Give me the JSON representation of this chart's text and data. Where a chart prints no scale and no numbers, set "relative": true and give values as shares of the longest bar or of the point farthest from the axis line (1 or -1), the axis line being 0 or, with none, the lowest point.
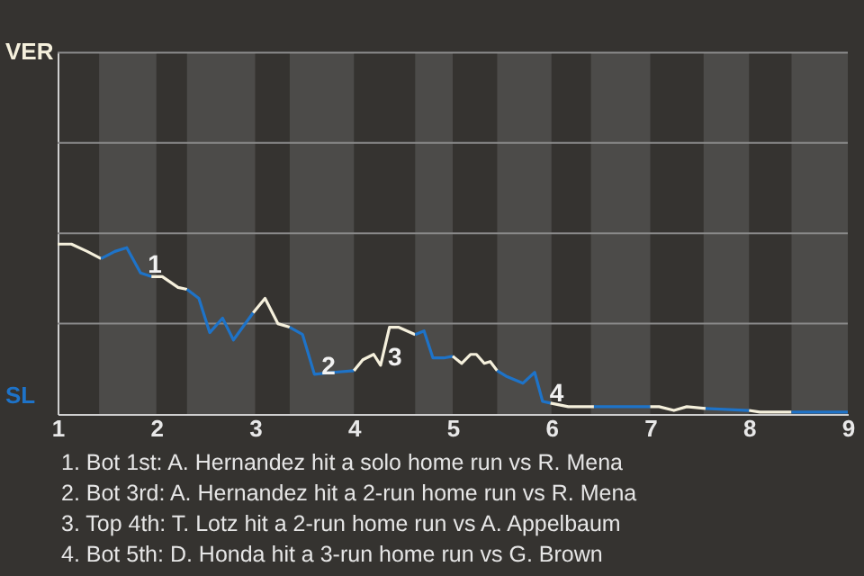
{
  "chart_data": {
    "type": "line",
    "relative": true,
    "xlim": [
      1,
      9
    ],
    "xticks": [
      1,
      2,
      3,
      4,
      5,
      6,
      7,
      8,
      9
    ],
    "ref_lines": [
      {
        "axis": "y",
        "value": 0.532,
        "color": "#8a8a8a"
      },
      {
        "axis": "y",
        "value": 1.064,
        "color": "#8a8a8a"
      },
      {
        "axis": "y",
        "value": 1.596,
        "color": "#8a8a8a"
      },
      {
        "axis": "y",
        "value": 2.128,
        "color": "#8a8a8a"
      }
    ],
    "marker": "none",
    "line_style": "solid",
    "series": [
      {
        "color": "#f5f0dc",
        "x": [
          1,
          1.14,
          1.3,
          1.44
        ],
        "values": [
          1,
          1,
          0.957,
          0.915
        ]
      },
      {
        "color": "#1e73c8",
        "x": [
          1.44,
          1.58,
          1.7,
          1.84,
          1.95
        ],
        "values": [
          0.915,
          0.957,
          0.979,
          0.83,
          0.809
        ]
      },
      {
        "color": "#f5f0dc",
        "x": [
          1.95,
          2.06,
          2.22,
          2.31
        ],
        "values": [
          0.809,
          0.809,
          0.745,
          0.734
        ]
      },
      {
        "color": "#1e73c8",
        "x": [
          2.31,
          2.43,
          2.54,
          2.67,
          2.78,
          2.98
        ],
        "values": [
          0.734,
          0.681,
          0.479,
          0.564,
          0.436,
          0.596
        ]
      },
      {
        "color": "#f5f0dc",
        "x": [
          2.98,
          3.1,
          3.23,
          3.35
        ],
        "values": [
          0.596,
          0.681,
          0.532,
          0.511
        ]
      },
      {
        "color": "#1e73c8",
        "x": [
          3.35,
          3.48,
          3.6,
          3.79,
          4
        ],
        "values": [
          0.511,
          0.468,
          0.234,
          0.245,
          0.255
        ]
      },
      {
        "color": "#f5f0dc",
        "x": [
          4,
          4.09,
          4.2,
          4.27,
          4.36,
          4.45,
          4.62
        ],
        "values": [
          0.255,
          0.319,
          0.351,
          0.287,
          0.511,
          0.511,
          0.468
        ]
      },
      {
        "color": "#1e73c8",
        "x": [
          4.62,
          4.71,
          4.8,
          4.91,
          5
        ],
        "values": [
          0.468,
          0.489,
          0.33,
          0.33,
          0.34
        ]
      },
      {
        "color": "#f5f0dc",
        "x": [
          5,
          5.09,
          5.18,
          5.24,
          5.32,
          5.38,
          5.45
        ],
        "values": [
          0.34,
          0.298,
          0.351,
          0.351,
          0.298,
          0.309,
          0.255
        ]
      },
      {
        "color": "#1e73c8",
        "x": [
          5.45,
          5.54,
          5.71,
          5.83,
          5.91,
          5.99
        ],
        "values": [
          0.255,
          0.223,
          0.181,
          0.245,
          0.074,
          0.064
        ]
      },
      {
        "color": "#f5f0dc",
        "x": [
          5.99,
          6.17,
          6.43
        ],
        "values": [
          0.064,
          0.043,
          0.043
        ]
      },
      {
        "color": "#1e73c8",
        "x": [
          6.43,
          7
        ],
        "values": [
          0.043,
          0.043
        ]
      },
      {
        "color": "#f5f0dc",
        "x": [
          7,
          7.09,
          7.24,
          7.37,
          7.56
        ],
        "values": [
          0.043,
          0.043,
          0.021,
          0.043,
          0.032
        ]
      },
      {
        "color": "#1e73c8",
        "x": [
          7.56,
          8
        ],
        "values": [
          0.032,
          0.021
        ]
      },
      {
        "color": "#f5f0dc",
        "x": [
          8,
          8.11,
          8.43
        ],
        "values": [
          0.021,
          0.011,
          0.011
        ]
      },
      {
        "color": "#1e73c8",
        "x": [
          8.43,
          9
        ],
        "values": [
          0.011,
          0.011
        ]
      }
    ],
    "bands": [
      {
        "axis": "x",
        "from": 1.42,
        "to": 2,
        "color": "#4c4b49"
      },
      {
        "axis": "x",
        "from": 2.31,
        "to": 3,
        "color": "#4c4b49"
      },
      {
        "axis": "x",
        "from": 3.35,
        "to": 4,
        "color": "#4c4b49"
      },
      {
        "axis": "x",
        "from": 4.62,
        "to": 5,
        "color": "#4c4b49"
      },
      {
        "axis": "x",
        "from": 5.45,
        "to": 6,
        "color": "#4c4b49"
      },
      {
        "axis": "x",
        "from": 6.4,
        "to": 7,
        "color": "#4c4b49"
      },
      {
        "axis": "x",
        "from": 7.54,
        "to": 8,
        "color": "#4c4b49"
      },
      {
        "axis": "x",
        "from": 8.43,
        "to": 9,
        "color": "#4c4b49"
      }
    ],
    "annotations": [
      "VER",
      "SL",
      {
        "text": "1",
        "x": 1.84,
        "y": 0.83
      },
      {
        "text": "2",
        "x": 3.6,
        "y": 0.234
      },
      {
        "text": "3",
        "x": 4.27,
        "y": 0.287
      },
      {
        "text": "4",
        "x": 5.91,
        "y": 0.074
      },
      "1. Bot 1st: A. Hernandez hit a solo home run vs R. Mena",
      "2. Bot 3rd: A. Hernandez hit a 2-run home run vs R. Mena",
      "3. Top 4th: T. Lotz hit a 2-run home run vs A. Appelbaum",
      "4. Bot 5th: D. Honda hit a 3-run home run vs G. Brown"
    ]
  }
}
